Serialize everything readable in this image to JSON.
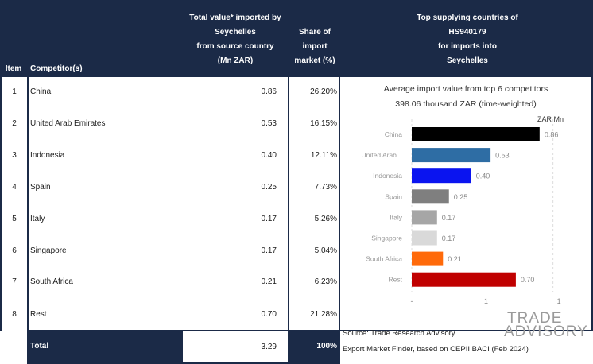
{
  "table": {
    "headers": {
      "item": "Item",
      "competitor": "Competitor(s)",
      "total_value": [
        "Total value* imported by",
        "Seychelles",
        "from source country",
        "(Mn ZAR)"
      ],
      "share": [
        "Share of",
        "import",
        "market (%)"
      ],
      "top_supplying": [
        "Top supplying countries of",
        "HS940179",
        "for imports into",
        "Seychelles"
      ]
    },
    "rows": [
      {
        "item": "1",
        "name": "China",
        "value": "0.86",
        "share": "26.20%"
      },
      {
        "item": "2",
        "name": "United Arab Emirates",
        "value": "0.53",
        "share": "16.15%"
      },
      {
        "item": "3",
        "name": "Indonesia",
        "value": "0.40",
        "share": "12.11%"
      },
      {
        "item": "4",
        "name": "Spain",
        "value": "0.25",
        "share": "7.73%"
      },
      {
        "item": "5",
        "name": "Italy",
        "value": "0.17",
        "share": "5.26%"
      },
      {
        "item": "6",
        "name": "Singapore",
        "value": "0.17",
        "share": "5.04%"
      },
      {
        "item": "7",
        "name": "South Africa",
        "value": "0.21",
        "share": "6.23%"
      },
      {
        "item": "8",
        "name": "Rest",
        "value": "0.70",
        "share": "21.28%"
      }
    ],
    "total": {
      "label": "Total",
      "value": "3.29",
      "share": "100%"
    }
  },
  "chart_data": {
    "type": "bar",
    "orientation": "horizontal",
    "title": "Average import value from top 6 competitors",
    "subtitle": "398.06 thousand ZAR (time-weighted)",
    "unit_label": "ZAR Mn",
    "categories": [
      "China",
      "United Arab...",
      "Indonesia",
      "Spain",
      "Italy",
      "Singapore",
      "South Africa",
      "Rest"
    ],
    "values": [
      0.86,
      0.53,
      0.4,
      0.25,
      0.17,
      0.17,
      0.21,
      0.7
    ],
    "value_labels": [
      "0.86",
      "0.53",
      "0.40",
      "0.25",
      "0.17",
      "0.17",
      "0.21",
      "0.70"
    ],
    "colors": [
      "#000000",
      "#2e6da4",
      "#0a14f0",
      "#7f7f7f",
      "#a6a6a6",
      "#d9d9d9",
      "#ff6a0a",
      "#c00000"
    ],
    "xlim": [
      0,
      1
    ],
    "x_tick_labels": [
      "-",
      "1",
      "1"
    ],
    "grid": "vertical dashed"
  },
  "footer": {
    "source": "Source: Trade Research Advisory",
    "note": "Export Market Finder, based on CEPII BACI (Feb 2024)",
    "logo_line1": "TRADE",
    "logo_line2": "ADVISORY"
  }
}
